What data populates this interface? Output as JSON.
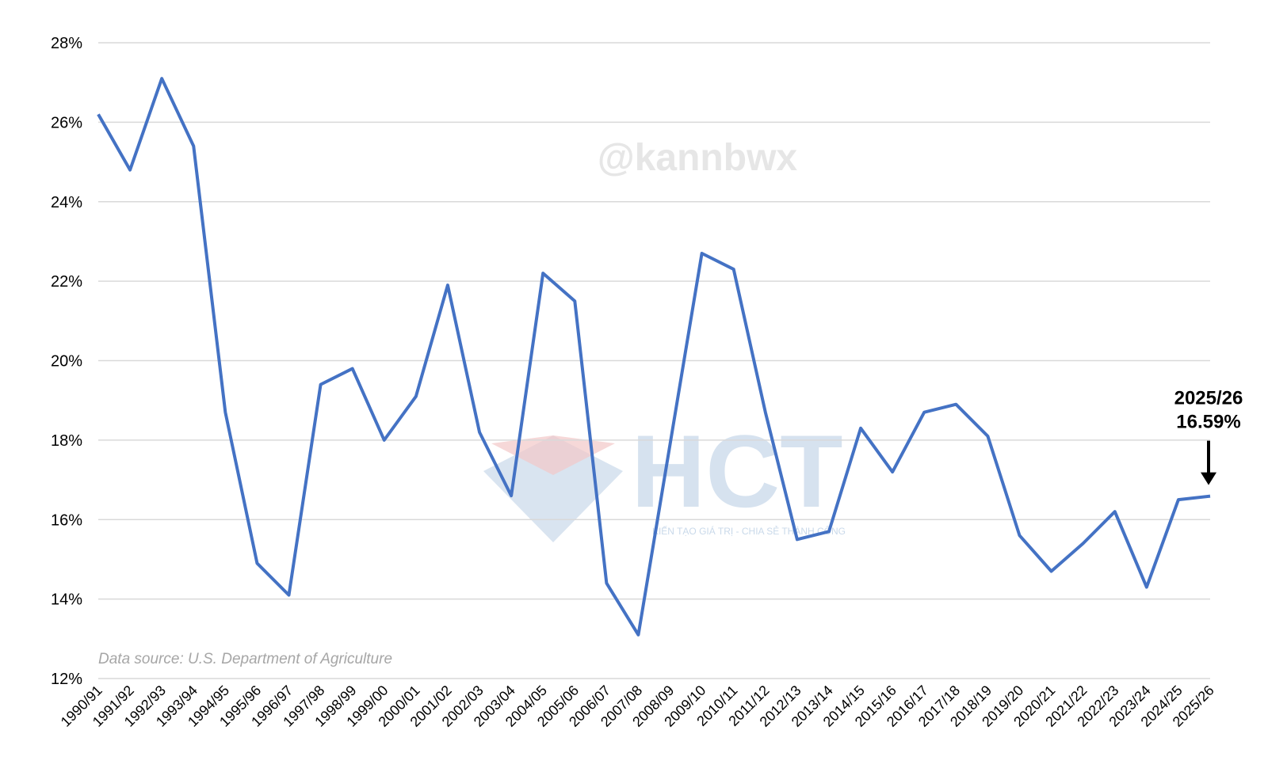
{
  "chart_data": {
    "type": "line",
    "categories": [
      "1990/91",
      "1991/92",
      "1992/93",
      "1993/94",
      "1994/95",
      "1995/96",
      "1996/97",
      "1997/98",
      "1998/99",
      "1999/00",
      "2000/01",
      "2001/02",
      "2002/03",
      "2003/04",
      "2004/05",
      "2005/06",
      "2006/07",
      "2007/08",
      "2008/09",
      "2009/10",
      "2010/11",
      "2011/12",
      "2012/13",
      "2013/14",
      "2014/15",
      "2015/16",
      "2016/17",
      "2017/18",
      "2018/19",
      "2019/20",
      "2020/21",
      "2021/22",
      "2022/23",
      "2023/24",
      "2024/25",
      "2025/26"
    ],
    "series": [
      {
        "color": "#4472c4",
        "values": [
          26.2,
          24.8,
          27.1,
          25.4,
          18.7,
          14.9,
          14.1,
          19.4,
          19.8,
          18.0,
          19.1,
          21.9,
          18.2,
          16.6,
          22.2,
          21.5,
          14.4,
          13.1,
          17.9,
          22.7,
          22.3,
          18.7,
          15.5,
          15.7,
          18.3,
          17.2,
          18.7,
          18.9,
          18.1,
          15.6,
          14.7,
          15.4,
          16.2,
          14.3,
          16.5,
          16.59
        ]
      }
    ],
    "ylim": [
      12,
      28
    ],
    "yticks": [
      {
        "value": 12,
        "label": "12%"
      },
      {
        "value": 14,
        "label": "14%"
      },
      {
        "value": 16,
        "label": "16%"
      },
      {
        "value": 18,
        "label": "18%"
      },
      {
        "value": 20,
        "label": "20%"
      },
      {
        "value": 22,
        "label": "22%"
      },
      {
        "value": 24,
        "label": "24%"
      },
      {
        "value": 26,
        "label": "26%"
      },
      {
        "value": 28,
        "label": "28%"
      }
    ],
    "grid": true,
    "annotation": [
      "2025/26",
      "16.59%"
    ],
    "source": "Data source: U.S. Department of Agriculture",
    "watermarks": [
      "@kannbwx",
      "HCT",
      "KIẾN TẠO GIÁ TRỊ - CHIA SẺ THÀNH CÔNG"
    ]
  }
}
